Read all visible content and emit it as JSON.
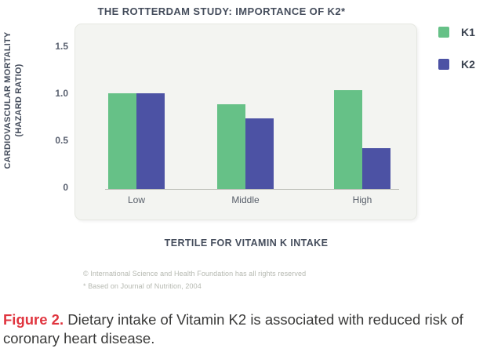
{
  "title": "THE ROTTERDAM STUDY: IMPORTANCE OF K2*",
  "y_axis": {
    "label_line1": "CARDIOVASCULAR MORTALITY",
    "label_line2": "(HAZARD RATIO)",
    "ticks": [
      "1.5",
      "1.0",
      "0.5",
      "0"
    ]
  },
  "x_axis": {
    "title": "TERTILE FOR VITAMIN K INTAKE",
    "categories": [
      "Low",
      "Middle",
      "High"
    ]
  },
  "legend": [
    {
      "label": "K1",
      "color": "#66c187"
    },
    {
      "label": "K2",
      "color": "#4c52a4"
    }
  ],
  "chart_data": {
    "type": "bar",
    "title": "THE ROTTERDAM STUDY: IMPORTANCE OF K2*",
    "categories": [
      "Low",
      "Middle",
      "High"
    ],
    "series": [
      {
        "name": "K1",
        "color": "#66c187",
        "values": [
          1.02,
          0.9,
          1.05
        ]
      },
      {
        "name": "K2",
        "color": "#4c52a4",
        "values": [
          1.02,
          0.75,
          0.43
        ]
      }
    ],
    "xlabel": "TERTILE FOR VITAMIN K INTAKE",
    "ylabel": "CARDIOVASCULAR MORTALITY (HAZARD RATIO)",
    "ylim": [
      0,
      1.75
    ],
    "yticks": [
      0,
      0.5,
      1.0,
      1.5
    ],
    "grid": false,
    "legend_position": "top-right"
  },
  "footnotes": [
    "© International Science and Health Foundation has all rights reserved",
    "* Based on Journal of Nutrition, 2004"
  ],
  "caption": {
    "label": "Figure 2.",
    "text": " Dietary intake of Vitamin K2 is associated with reduced risk of coronary heart disease."
  },
  "colors": {
    "k1_green": "#66c187",
    "k2_blue": "#4c52a4",
    "card_background": "#f3f4f1",
    "heading_text": "#454d5c",
    "axis_text": "#5a6170",
    "footnote_text": "#b5b8b0",
    "caption_accent": "#e0353f"
  }
}
